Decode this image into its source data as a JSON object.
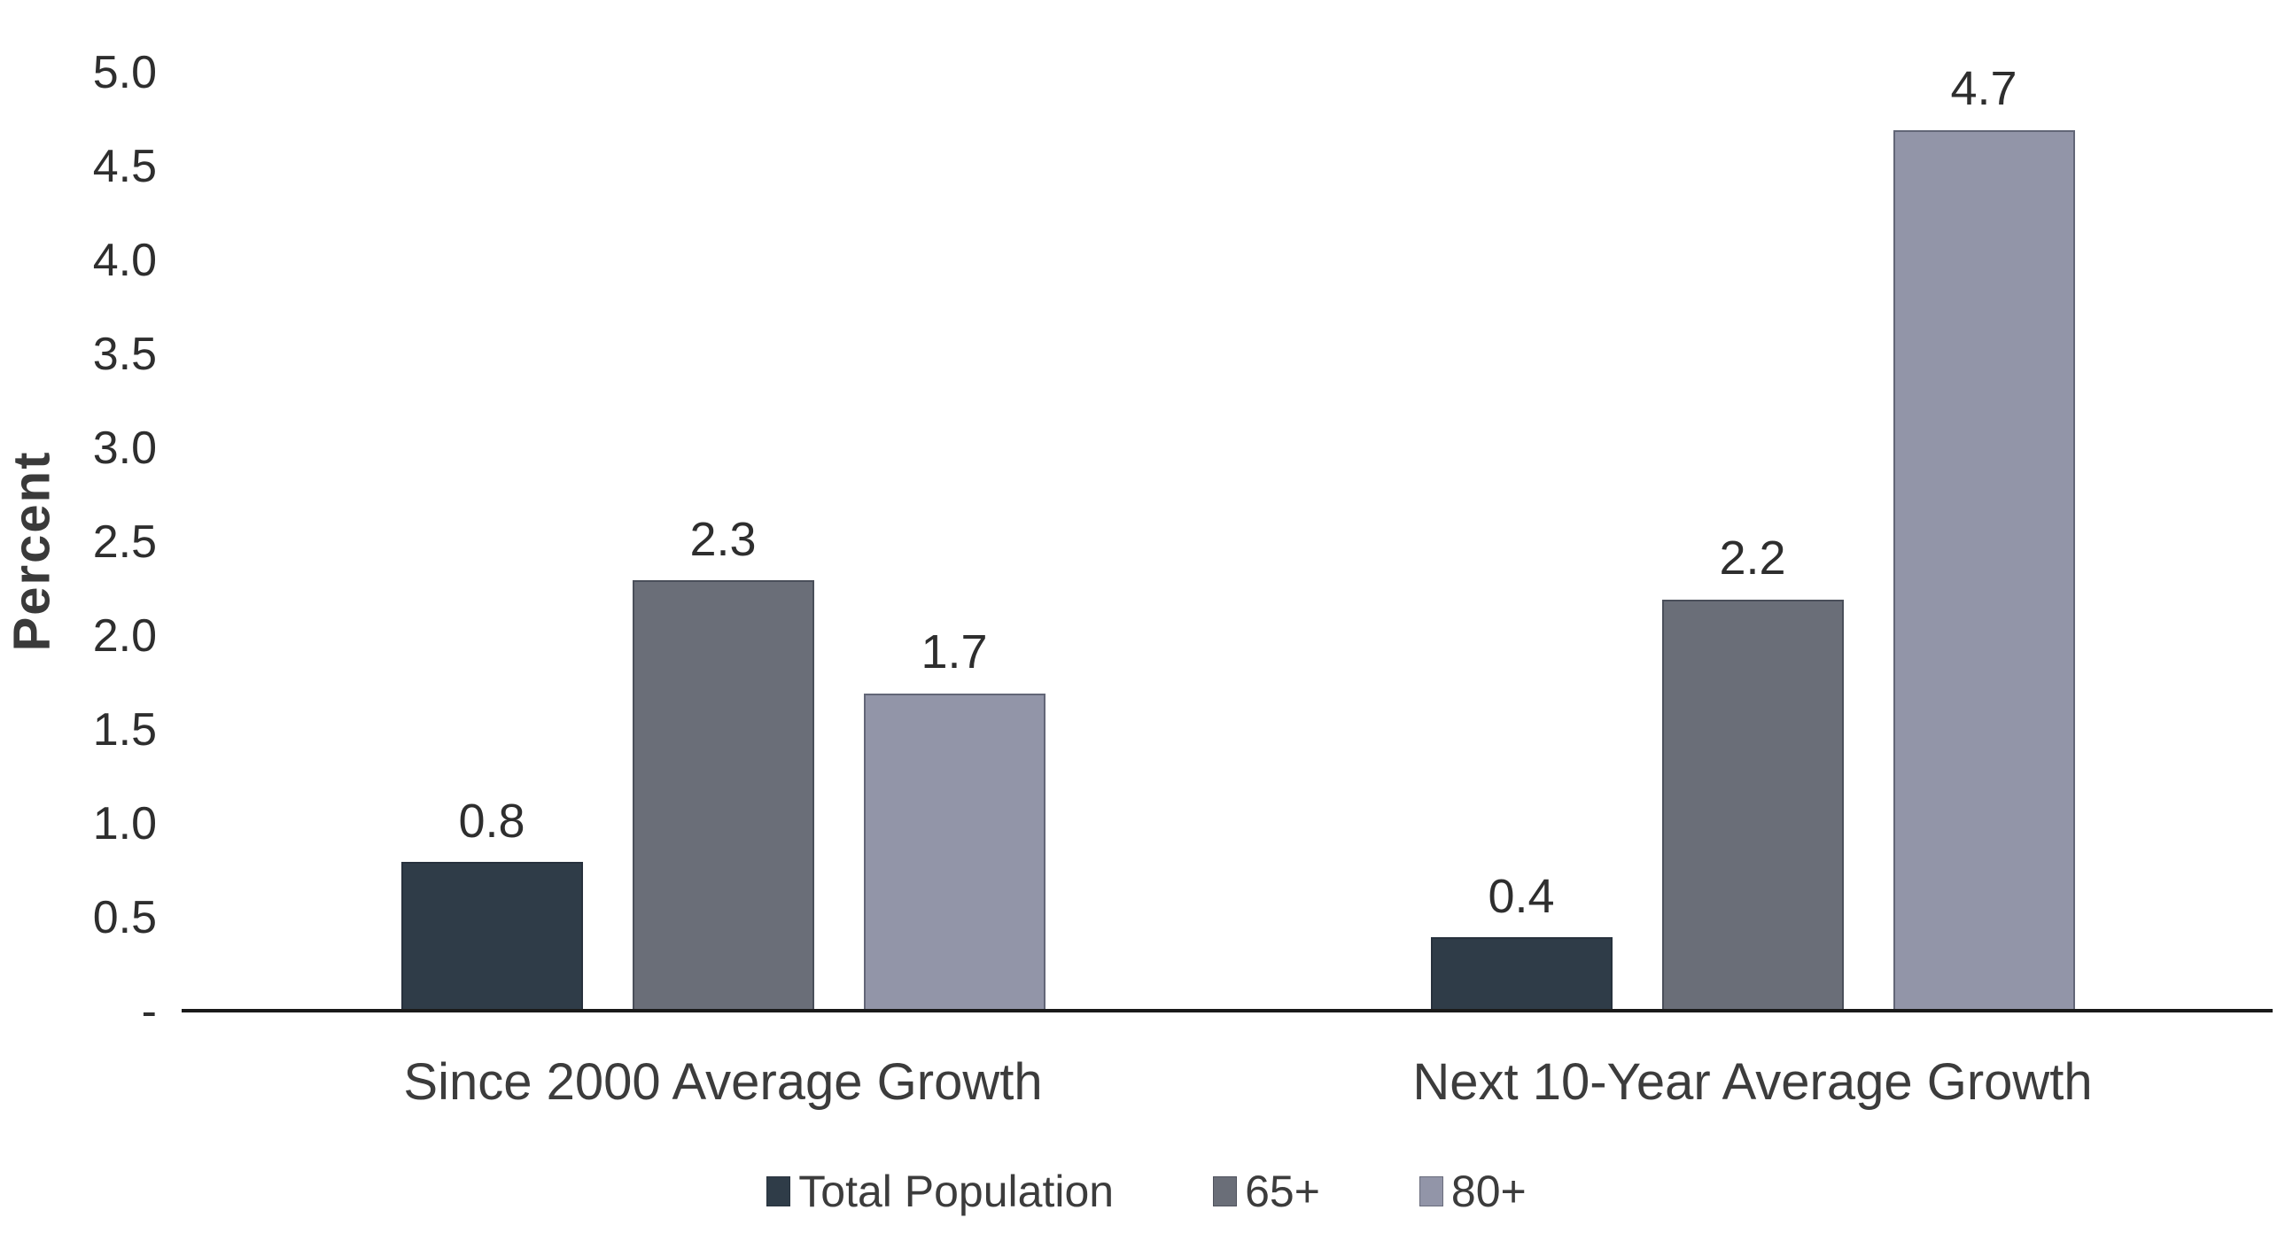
{
  "chart_data": {
    "type": "bar",
    "title": "",
    "xlabel": "",
    "ylabel": "Percent",
    "ylim": [
      0,
      5
    ],
    "ytick_step": 0.5,
    "ytick_labels": [
      "5.0",
      "4.5",
      "4.0",
      "3.5",
      "3.0",
      "2.5",
      "2.0",
      "1.5",
      "1.0",
      "0.5",
      "-"
    ],
    "grid": false,
    "legend_position": "bottom",
    "categories": [
      "Since 2000 Average Growth",
      "Next 10-Year Average Growth"
    ],
    "series": [
      {
        "name": "Total Population",
        "color": "#2f3c48",
        "values": [
          0.8,
          0.4
        ],
        "labels": [
          "0.8",
          "0.4"
        ]
      },
      {
        "name": "65+",
        "color": "#6a6e78",
        "values": [
          2.3,
          2.2
        ],
        "labels": [
          "2.3",
          "2.2"
        ]
      },
      {
        "name": "80+",
        "color": "#9295a8",
        "values": [
          1.7,
          4.7
        ],
        "labels": [
          "1.7",
          "4.7"
        ]
      }
    ],
    "axis_line_color": "#1a1a1a",
    "text_color": "#3c3c3c"
  }
}
